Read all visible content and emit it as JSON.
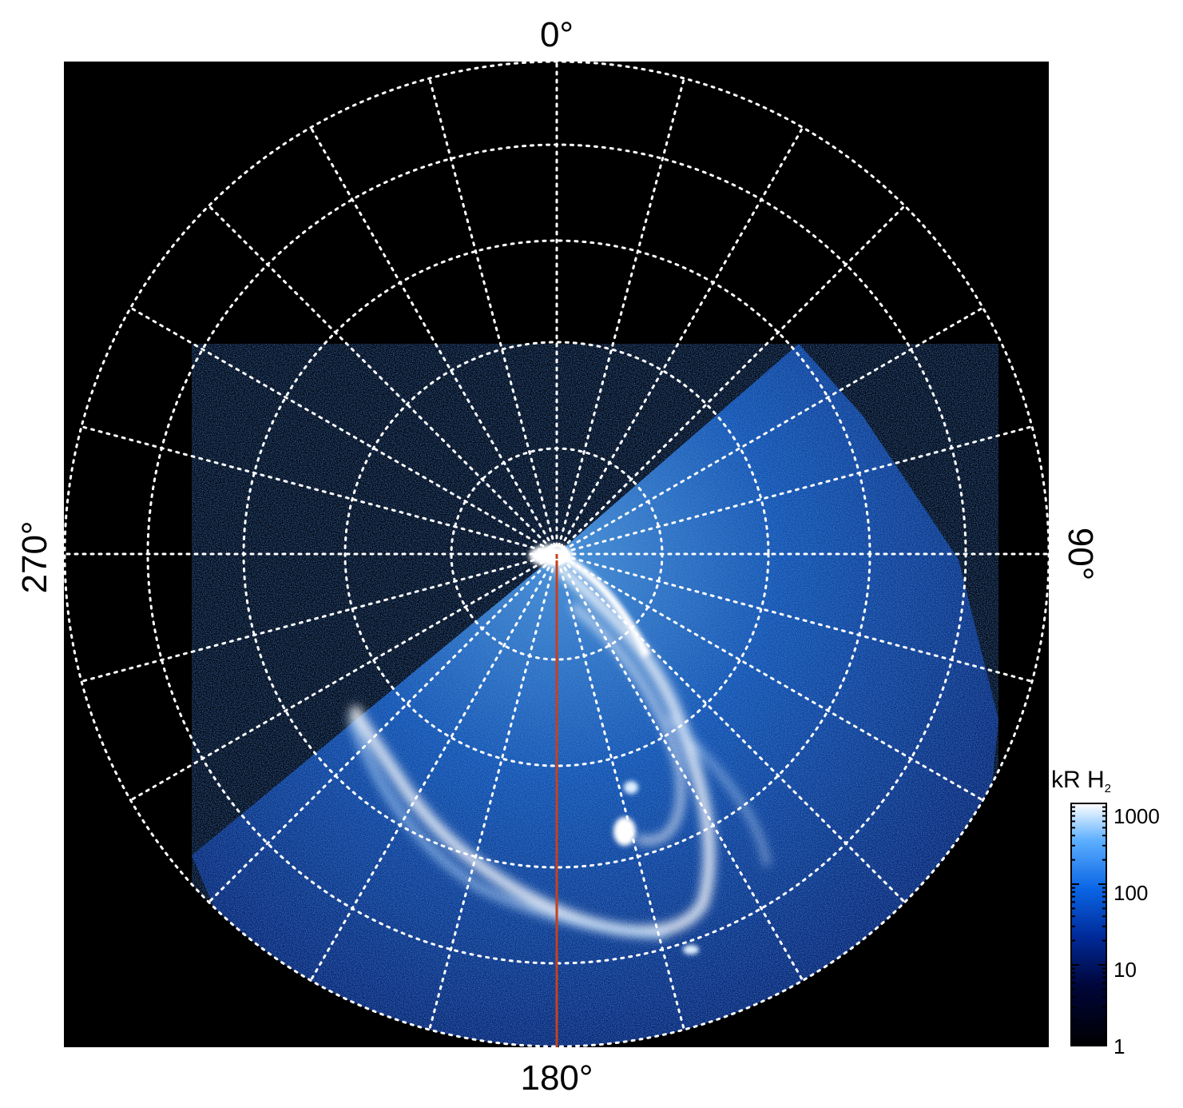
{
  "figure": {
    "axis_labels": {
      "top": "0°",
      "right": "90°",
      "bottom": "180°",
      "left": "270°"
    },
    "colorbar": {
      "title_main": "kR H",
      "title_sub": "2",
      "scale": "log",
      "range": [
        1,
        1000
      ],
      "ticks": [
        "1000",
        "100",
        "10",
        "1"
      ],
      "colors": [
        "#000000",
        "#00063a",
        "#002a9a",
        "#0a66e6",
        "#5fb0ff",
        "#ffffff"
      ]
    },
    "colors": {
      "panel_background": "#000000",
      "grid": "#ffffff",
      "meridian_marker": "#c8401c",
      "aurora_low": "#0a3aa8",
      "aurora_mid": "#2f8cf0",
      "aurora_high": "#ffffff"
    },
    "grid": {
      "style": "dotted",
      "meridian_count": 24,
      "ring_count": 5
    }
  }
}
